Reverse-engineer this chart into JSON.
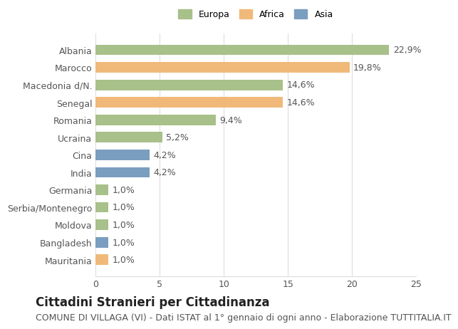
{
  "categories": [
    "Albania",
    "Marocco",
    "Macedonia d/N.",
    "Senegal",
    "Romania",
    "Ucraina",
    "Cina",
    "India",
    "Germania",
    "Serbia/Montenegro",
    "Moldova",
    "Bangladesh",
    "Mauritania"
  ],
  "values": [
    22.9,
    19.8,
    14.6,
    14.6,
    9.4,
    5.2,
    4.2,
    4.2,
    1.0,
    1.0,
    1.0,
    1.0,
    1.0
  ],
  "labels": [
    "22,9%",
    "19,8%",
    "14,6%",
    "14,6%",
    "9,4%",
    "5,2%",
    "4,2%",
    "4,2%",
    "1,0%",
    "1,0%",
    "1,0%",
    "1,0%",
    "1,0%"
  ],
  "continent": [
    "Europa",
    "Africa",
    "Europa",
    "Africa",
    "Europa",
    "Europa",
    "Asia",
    "Asia",
    "Europa",
    "Europa",
    "Europa",
    "Asia",
    "Africa"
  ],
  "colors": {
    "Europa": "#a8c08a",
    "Africa": "#f0b97a",
    "Asia": "#7a9ec0"
  },
  "legend_labels": [
    "Europa",
    "Africa",
    "Asia"
  ],
  "xlim": [
    0,
    25
  ],
  "xticks": [
    0,
    5,
    10,
    15,
    20,
    25
  ],
  "title": "Cittadini Stranieri per Cittadinanza",
  "subtitle": "COMUNE DI VILLAGA (VI) - Dati ISTAT al 1° gennaio di ogni anno - Elaborazione TUTTITALIA.IT",
  "background_color": "#ffffff",
  "bar_height": 0.6,
  "grid_color": "#dddddd",
  "label_fontsize": 9,
  "tick_fontsize": 9,
  "title_fontsize": 12,
  "subtitle_fontsize": 9
}
